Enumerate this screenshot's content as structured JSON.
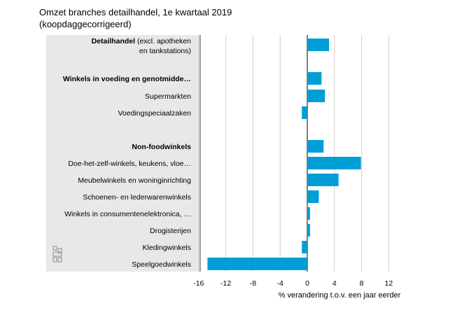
{
  "title_line1": "Omzet branches detailhandel, 1e kwartaal 2019",
  "title_line2": "(koopdaggecorrigeerd)",
  "logo_icon": "cbs-logo-icon",
  "colors": {
    "bar": "#009ed6",
    "panel": "#e8e8e8",
    "grid": "#cfcfcf",
    "zero_axis": "#555555"
  },
  "chart_data": {
    "type": "bar",
    "orientation": "horizontal",
    "xlabel": "% verandering t.o.v. een jaar eerder",
    "xlim": [
      -16,
      14
    ],
    "xticks": [
      -16,
      -12,
      -8,
      -4,
      0,
      4,
      8,
      12
    ],
    "grid": true,
    "categories": [
      {
        "label": "Detailhandel",
        "suffix": "(excl. apotheken",
        "suffix2": "en tankstations)",
        "bold": true,
        "value": 3.2
      },
      {
        "label": "Winkels in voeding en genotmidde…",
        "bold": true,
        "value": 2.1
      },
      {
        "label": "Supermarkten",
        "bold": false,
        "value": 2.6
      },
      {
        "label": "Voedingspeciaalzaken",
        "bold": false,
        "value": -0.8
      },
      {
        "label": "Non-foodwinkels",
        "bold": true,
        "value": 2.4
      },
      {
        "label": "Doe-het-zelf-winkels, keukens, vloe…",
        "bold": false,
        "value": 7.9
      },
      {
        "label": "Meubelwinkels en woninginrichting",
        "bold": false,
        "value": 4.6
      },
      {
        "label": "Schoenen- en lederwarenwinkels",
        "bold": false,
        "value": 1.7
      },
      {
        "label": "Winkels in consumentenelektronica, …",
        "bold": false,
        "value": 0.4
      },
      {
        "label": "Drogisterijen",
        "bold": false,
        "value": 0.4
      },
      {
        "label": "Kledingwinkels",
        "bold": false,
        "value": -0.8
      },
      {
        "label": "Speelgoedwinkels",
        "bold": false,
        "value": -14.7
      }
    ]
  }
}
